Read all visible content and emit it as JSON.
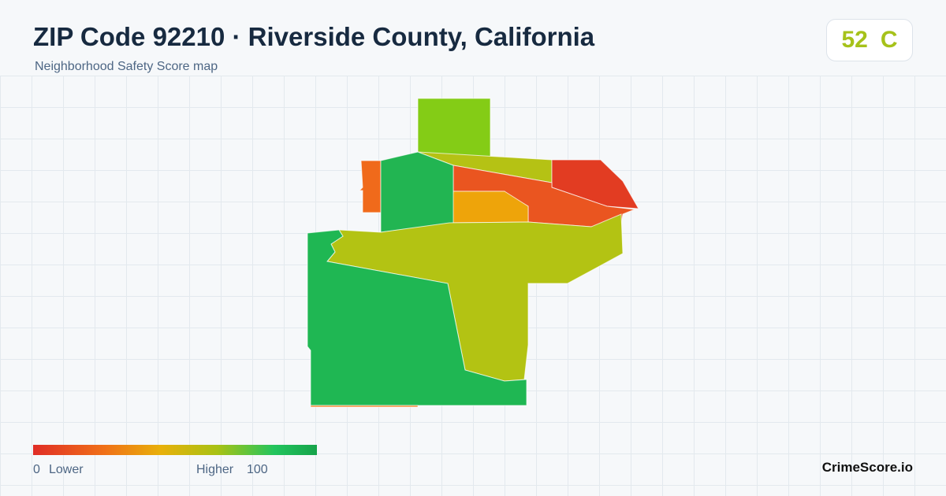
{
  "header": {
    "title": "ZIP Code 92210 · Riverside County, California",
    "subtitle": "Neighborhood Safety Score map"
  },
  "score": {
    "value": 52,
    "grade": "C"
  },
  "legend": {
    "min": 0,
    "min_label": "Lower",
    "max_label": "Higher",
    "max": 100
  },
  "brand": "CrimeScore.io"
}
